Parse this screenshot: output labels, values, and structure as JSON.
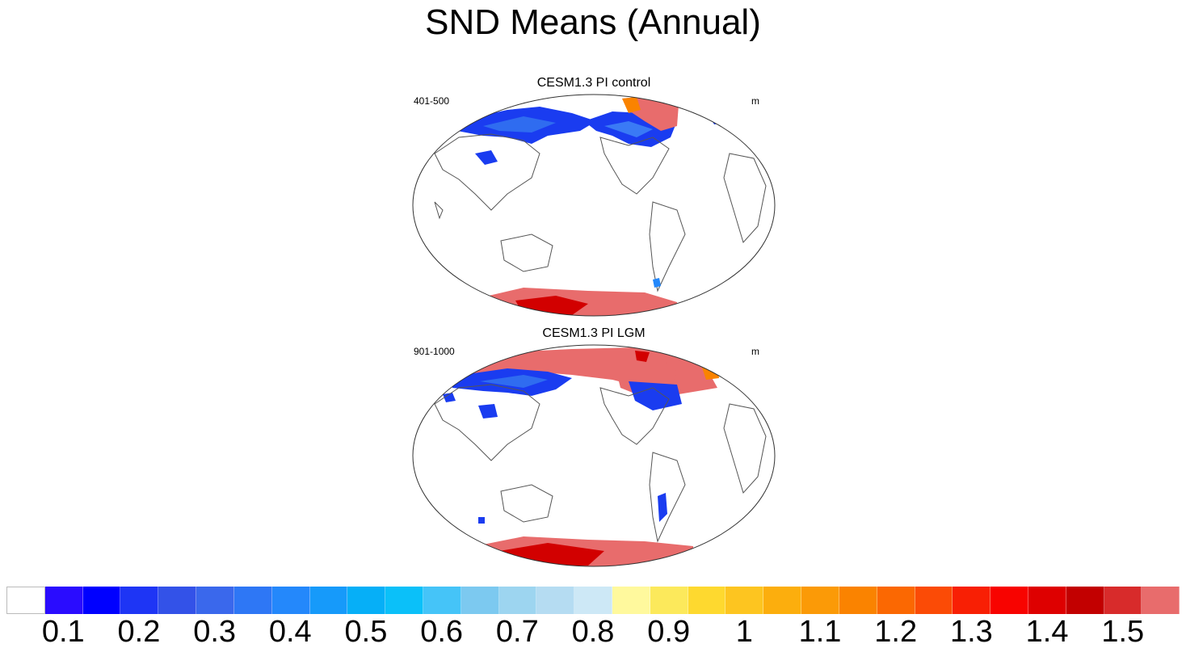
{
  "title": "SND Means (Annual)",
  "panels": [
    {
      "title": "CESM1.3 PI control",
      "left_label": "401-500",
      "right_label": "m"
    },
    {
      "title": "CESM1.3 PI LGM",
      "left_label": "901-1000",
      "right_label": "m"
    }
  ],
  "colorbar": {
    "colors": [
      "#ffffff",
      "#2a0cff",
      "#0000ff",
      "#1e35f5",
      "#3352e8",
      "#3a68ec",
      "#2e77f5",
      "#2488fb",
      "#169afa",
      "#06aff7",
      "#0bc0f9",
      "#45c4f8",
      "#7cc9f0",
      "#9dd5f0",
      "#b5dcf2",
      "#cde8f6",
      "#fff99d",
      "#fce95b",
      "#fed92f",
      "#fdc520",
      "#fcae0d",
      "#fb9a07",
      "#fa8300",
      "#fb6802",
      "#fb4b06",
      "#f81f04",
      "#f80300",
      "#de0000",
      "#c20000",
      "#d82b2b",
      "#e86c6c"
    ],
    "tick_labels": [
      "0.1",
      "0.2",
      "0.3",
      "0.4",
      "0.5",
      "0.6",
      "0.7",
      "0.8",
      "0.9",
      "1",
      "1.1",
      "1.2",
      "1.3",
      "1.4",
      "1.5"
    ]
  },
  "colors": {
    "land_outline": "#555555",
    "frame": "#333333",
    "antarctic": "#e86c6c",
    "antarctic_dark": "#d20000"
  }
}
